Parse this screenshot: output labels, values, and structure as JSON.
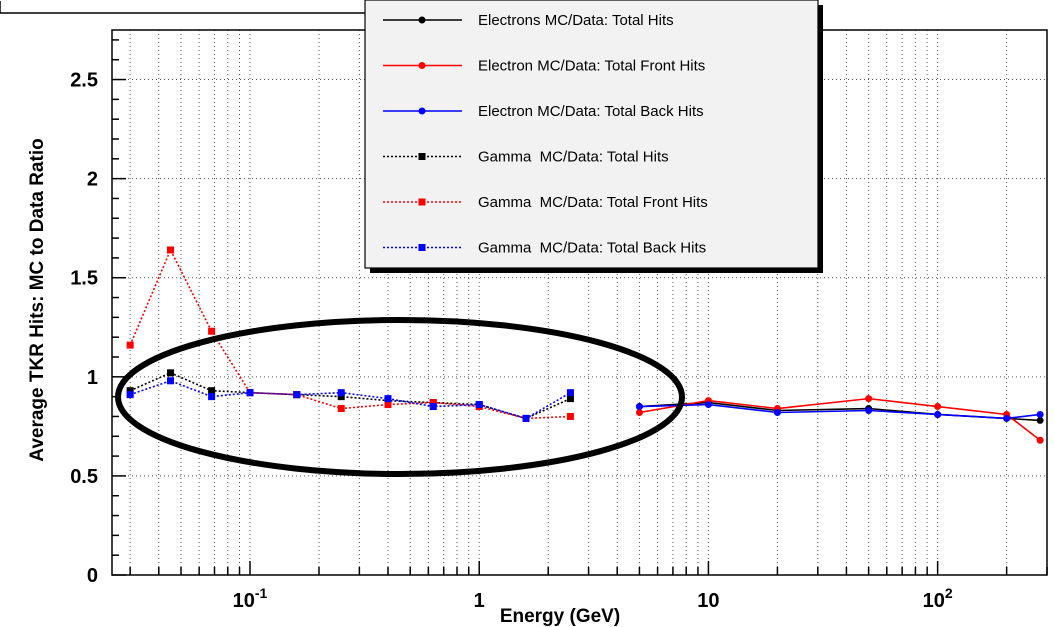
{
  "chart_data": {
    "type": "line",
    "xlabel": "Energy (GeV)",
    "ylabel": "Average TKR Hits: MC to Data Ratio",
    "x_scale": "log",
    "xlim": [
      0.025,
      300
    ],
    "ylim": [
      0,
      2.75
    ],
    "grid": true,
    "legend_position": "top-right",
    "x_tick_labels": [
      {
        "value": 0.1,
        "base": "10",
        "exp": "-1"
      },
      {
        "value": 1,
        "base": "1",
        "exp": ""
      },
      {
        "value": 10,
        "base": "10",
        "exp": ""
      },
      {
        "value": 100,
        "base": "10",
        "exp": "2"
      }
    ],
    "y_ticks": [
      {
        "value": 0,
        "label": "0"
      },
      {
        "value": 0.5,
        "label": "0.5"
      },
      {
        "value": 1,
        "label": "1"
      },
      {
        "value": 1.5,
        "label": "1.5"
      },
      {
        "value": 2,
        "label": "2"
      },
      {
        "value": 2.5,
        "label": "2.5"
      }
    ],
    "series": [
      {
        "name": "Electrons MC/Data: Total Hits",
        "color": "#000000",
        "dash": "solid",
        "marker": "circle",
        "x": [
          5,
          10,
          20,
          50,
          100,
          200,
          280
        ],
        "y": [
          0.85,
          0.87,
          0.83,
          0.84,
          0.81,
          0.79,
          0.78
        ]
      },
      {
        "name": "Electron MC/Data: Total Front Hits",
        "color": "#ff0000",
        "dash": "solid",
        "marker": "circle",
        "x": [
          5,
          10,
          20,
          50,
          100,
          200,
          280
        ],
        "y": [
          0.82,
          0.88,
          0.84,
          0.89,
          0.85,
          0.81,
          0.68
        ]
      },
      {
        "name": "Electron MC/Data: Total Back Hits",
        "color": "#0000ff",
        "dash": "solid",
        "marker": "circle",
        "x": [
          5,
          10,
          20,
          50,
          100,
          200,
          280
        ],
        "y": [
          0.85,
          0.86,
          0.82,
          0.83,
          0.81,
          0.79,
          0.81
        ]
      },
      {
        "name": "Gamma  MC/Data: Total Hits",
        "color": "#000000",
        "dash": "dotted",
        "marker": "square",
        "x": [
          0.03,
          0.045,
          0.068,
          0.1,
          0.16,
          0.25,
          0.4,
          0.63,
          1.0,
          1.6,
          2.5
        ],
        "y": [
          0.93,
          1.02,
          0.93,
          0.92,
          0.91,
          0.9,
          0.88,
          0.87,
          0.86,
          0.79,
          0.89
        ]
      },
      {
        "name": "Gamma  MC/Data: Total Front Hits",
        "color": "#ff0000",
        "dash": "dotted",
        "marker": "square",
        "x": [
          0.03,
          0.045,
          0.068,
          0.1,
          0.16,
          0.25,
          0.4,
          0.63,
          1.0,
          1.6,
          2.5
        ],
        "y": [
          1.16,
          1.64,
          1.23,
          0.92,
          0.91,
          0.84,
          0.86,
          0.87,
          0.85,
          0.79,
          0.8
        ]
      },
      {
        "name": "Gamma  MC/Data: Total Back Hits",
        "color": "#0000ff",
        "dash": "dotted",
        "marker": "square",
        "x": [
          0.03,
          0.045,
          0.068,
          0.1,
          0.16,
          0.25,
          0.4,
          0.63,
          1.0,
          1.6,
          2.5
        ],
        "y": [
          0.91,
          0.98,
          0.9,
          0.92,
          0.91,
          0.92,
          0.89,
          0.85,
          0.86,
          0.79,
          0.92
        ]
      }
    ]
  }
}
